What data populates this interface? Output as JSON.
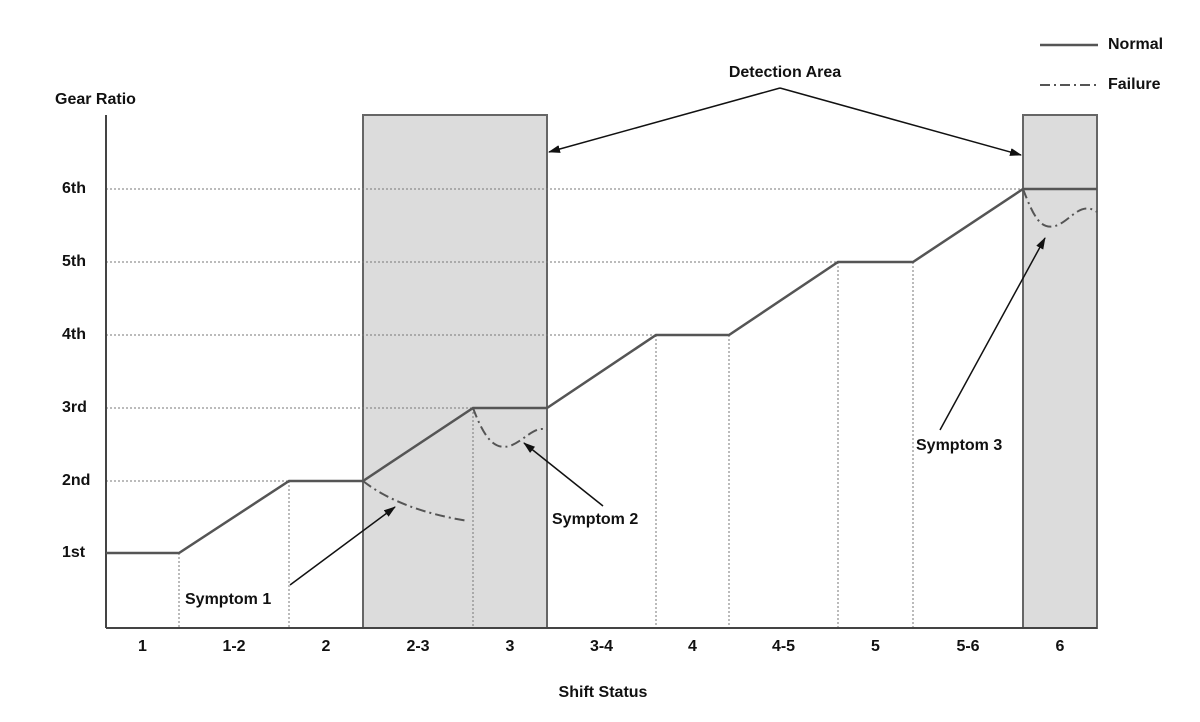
{
  "y_axis": {
    "label": "Gear Ratio",
    "levels": [
      "1st",
      "2nd",
      "3rd",
      "4th",
      "5th",
      "6th"
    ]
  },
  "x_axis": {
    "label": "Shift Status",
    "categories": [
      "1",
      "1-2",
      "2",
      "2-3",
      "3",
      "3-4",
      "4",
      "4-5",
      "5",
      "5-6",
      "6"
    ]
  },
  "legend": [
    "Normal",
    "Failure"
  ],
  "annotations": {
    "detection_area": "Detection Area",
    "symptom_1": "Symptom 1",
    "symptom_2": "Symptom 2",
    "symptom_3": "Symptom 3"
  }
}
